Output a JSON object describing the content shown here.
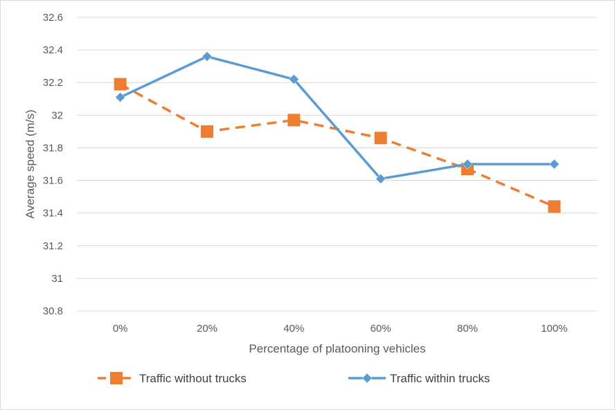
{
  "chart_data": {
    "type": "line",
    "title": "",
    "xlabel": "Percentage of platooning vehicles",
    "ylabel": "Average speed (m/s)",
    "categories": [
      "0%",
      "20%",
      "40%",
      "60%",
      "80%",
      "100%"
    ],
    "ylim": [
      30.8,
      32.6
    ],
    "yticks": [
      "30.8",
      "31",
      "31.2",
      "31.4",
      "31.6",
      "31.8",
      "32",
      "32.2",
      "32.4",
      "32.6"
    ],
    "grid": "horizontal",
    "legend_position": "bottom",
    "series": [
      {
        "name": "Traffic without trucks",
        "values": [
          32.19,
          31.9,
          31.97,
          31.86,
          31.67,
          31.44
        ],
        "color": "#ed7d31",
        "line_style": "dashed",
        "marker": "square"
      },
      {
        "name": "Traffic within trucks",
        "values": [
          32.11,
          32.36,
          32.22,
          31.61,
          31.7,
          31.7
        ],
        "color": "#5b9bd5",
        "line_style": "solid",
        "marker": "diamond"
      }
    ]
  }
}
